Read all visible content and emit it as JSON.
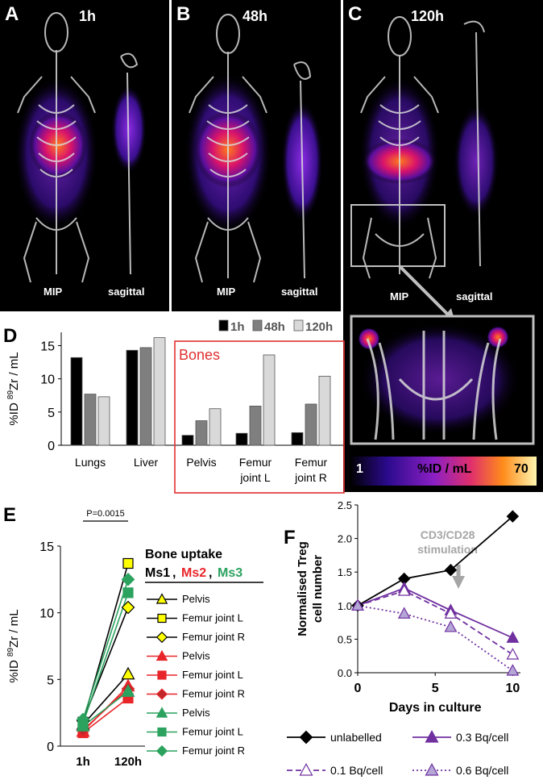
{
  "panels": {
    "A": {
      "letter": "A",
      "time": "1h",
      "view1": "MIP",
      "view2": "sagittal"
    },
    "B": {
      "letter": "B",
      "time": "48h",
      "view1": "MIP",
      "view2": "sagittal"
    },
    "C": {
      "letter": "C",
      "time": "120h",
      "view1": "MIP",
      "view2": "sagittal",
      "colorbar": {
        "min_label": "1",
        "mid_label": "%ID / mL",
        "max_label": "70"
      }
    }
  },
  "colors": {
    "black": "#000000",
    "red": "#e8262a",
    "green": "#2ca25f",
    "purple": "#7030a0",
    "lilac": "#b4a7d6",
    "box_red": "#e03030",
    "gray_arrow": "#a6a6a6"
  },
  "chart_data": [
    {
      "id": "D",
      "letter": "D",
      "type": "bar",
      "ylabel": "%ID 89Zr / mL",
      "ylabel_parts": {
        "pre": "%ID",
        "sup": "89",
        "post": "Zr / mL"
      },
      "ylim": [
        0,
        17
      ],
      "yticks": [
        0,
        5,
        10,
        15
      ],
      "categories": [
        "Lungs",
        "Liver",
        "Pelvis",
        "Femur joint L",
        "Femur joint R"
      ],
      "category_lines": [
        [
          "Lungs"
        ],
        [
          "Liver"
        ],
        [
          "Pelvis"
        ],
        [
          "Femur",
          "joint L"
        ],
        [
          "Femur",
          "joint R"
        ]
      ],
      "series": [
        {
          "name": "1h",
          "color": "#000000",
          "values": [
            13.2,
            14.3,
            1.5,
            1.8,
            1.9
          ]
        },
        {
          "name": "48h",
          "color": "#7f7f7f",
          "values": [
            7.7,
            14.7,
            3.7,
            5.9,
            6.2
          ]
        },
        {
          "name": "120h",
          "color": "#d9d9d9",
          "values": [
            7.3,
            16.2,
            5.5,
            13.6,
            10.4
          ]
        }
      ],
      "annotation": "Bones"
    },
    {
      "id": "E",
      "letter": "E",
      "type": "line",
      "ylabel": "%ID 89Zr / mL",
      "ylabel_parts": {
        "pre": "%ID",
        "sup": "89",
        "post": "Zr / mL"
      },
      "ylim": [
        0,
        15
      ],
      "yticks": [
        0,
        5,
        10,
        15
      ],
      "categories": [
        "1h",
        "120h"
      ],
      "pvalue": "P=0.0015",
      "legend_title": "Bone uptake",
      "legend_mice": [
        "Ms1",
        "Ms2",
        "Ms3"
      ],
      "series": [
        {
          "name": "Pelvis",
          "mouse": "Ms1",
          "color": "#000000",
          "fill": "#ffff00",
          "marker": "triangle",
          "values": [
            1.6,
            5.4
          ]
        },
        {
          "name": "Femur joint L",
          "mouse": "Ms1",
          "color": "#000000",
          "fill": "#ffff00",
          "marker": "square",
          "values": [
            1.8,
            13.7
          ]
        },
        {
          "name": "Femur joint R",
          "mouse": "Ms1",
          "color": "#000000",
          "fill": "#ffff00",
          "marker": "diamond",
          "values": [
            1.9,
            10.4
          ]
        },
        {
          "name": "Pelvis",
          "mouse": "Ms2",
          "color": "#e8262a",
          "fill": "#e8262a",
          "marker": "triangle",
          "values": [
            1.1,
            4.5
          ]
        },
        {
          "name": "Femur joint L",
          "mouse": "Ms2",
          "color": "#e8262a",
          "fill": "#e8262a",
          "marker": "square",
          "values": [
            1.0,
            3.6
          ]
        },
        {
          "name": "Femur joint R",
          "mouse": "Ms2",
          "color": "#e8262a",
          "fill": "#c0282b",
          "marker": "diamond",
          "values": [
            1.2,
            4.3
          ]
        },
        {
          "name": "Pelvis",
          "mouse": "Ms3",
          "color": "#2ca25f",
          "fill": "#2ca25f",
          "marker": "triangle",
          "values": [
            1.5,
            4.1
          ]
        },
        {
          "name": "Femur joint L",
          "mouse": "Ms3",
          "color": "#2ca25f",
          "fill": "#2ca25f",
          "marker": "square",
          "values": [
            1.7,
            11.5
          ]
        },
        {
          "name": "Femur joint R",
          "mouse": "Ms3",
          "color": "#2ca25f",
          "fill": "#2ca25f",
          "marker": "diamond",
          "values": [
            2.0,
            12.5
          ]
        }
      ]
    },
    {
      "id": "F",
      "letter": "F",
      "type": "line",
      "ylabel_lines": [
        "Normalised Treg",
        "cell number"
      ],
      "xlabel": "Days in culture",
      "xlim": [
        0,
        10.5
      ],
      "ylim": [
        0,
        2.5
      ],
      "xticks": [
        0,
        5,
        10
      ],
      "yticks": [
        0.0,
        0.5,
        1.0,
        1.5,
        2.0,
        2.5
      ],
      "ytick_labels": [
        "0.0",
        "0.5",
        "1.0",
        "1.5",
        "2.0",
        "2.5"
      ],
      "x": [
        0,
        3,
        6,
        10
      ],
      "annotation_lines": [
        "CD3/CD28",
        "stimulation"
      ],
      "annotation_x": 6.5,
      "series": [
        {
          "name": "unlabelled",
          "color": "#000000",
          "fill": "#000000",
          "marker": "diamond",
          "dash": "",
          "values": [
            1.0,
            1.4,
            1.53,
            2.33
          ]
        },
        {
          "name": "0.3 Bq/cell",
          "color": "#7030a0",
          "fill": "#7030a0",
          "marker": "triangle",
          "dash": "",
          "values": [
            1.0,
            1.26,
            0.93,
            0.52
          ]
        },
        {
          "name": "0.1 Bq/cell",
          "color": "#7030a0",
          "fill": "#ffffff",
          "marker": "triangle",
          "dash": "7,4",
          "values": [
            1.0,
            1.22,
            0.88,
            0.27
          ]
        },
        {
          "name": "0.6 Bq/cell",
          "color": "#7030a0",
          "fill": "#b4a7d6",
          "marker": "triangle",
          "dash": "2,3",
          "values": [
            1.0,
            0.88,
            0.68,
            0.03
          ]
        }
      ]
    }
  ]
}
